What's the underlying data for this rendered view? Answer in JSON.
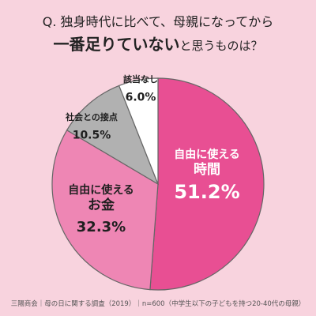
{
  "question": {
    "line1": "Q. 独身時代に比べて、母親になってから",
    "line2_bold": "一番足りていない",
    "line2_rest": "と思うものは？"
  },
  "chart_data": {
    "type": "pie",
    "slices": [
      {
        "label_lines": [
          "自由に使える",
          "時間"
        ],
        "value": 51.2,
        "value_text": "51.2%",
        "color": "#e84f93"
      },
      {
        "label_lines": [
          "自由に使える",
          "お金"
        ],
        "value": 32.3,
        "value_text": "32.3%",
        "color": "#ee86b4"
      },
      {
        "label_lines": [
          "社会との接点"
        ],
        "value": 10.5,
        "value_text": "10.5%",
        "color": "#b1b1b1"
      },
      {
        "label_lines": [
          "該当なし"
        ],
        "value": 6.0,
        "value_text": "6.0%",
        "color": "#ffffff"
      }
    ],
    "start": "12 o'clock",
    "direction": "clockwise"
  },
  "footer": "三陽商会｜母の日に関する調査（2019）｜n=600（中学生以下の子どもを持つ20-40代の母親）"
}
